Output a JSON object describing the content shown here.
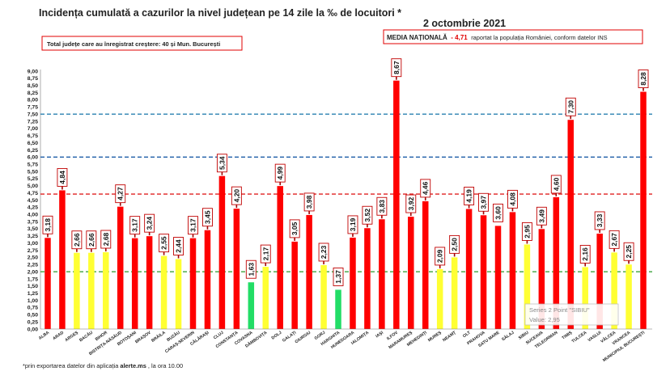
{
  "header": {
    "title": "Incidența cumulată a cazurilor la nivel județean pe 14 zile la ‰ de locuitori *",
    "date": "2 octombrie 2021"
  },
  "info_box": {
    "text": "Total județe care au înregistrat creștere:  40 și Mun. București"
  },
  "media_box": {
    "label": "MEDIA NAȚIONALĂ",
    "separator": " - ",
    "value": "4,71",
    "suffix": " raportat la populația României, conform datelor INS"
  },
  "tooltip": {
    "line1": "Series 2 Point \"SIBIU\"",
    "line2": "Value: 2,95"
  },
  "footnote": {
    "text": "*prin exportarea datelor din aplicația ",
    "bold": "alerte.ms",
    "end": ", la ora 10.00"
  },
  "colors": {
    "red": "#ff0000",
    "yellow": "#ffff33",
    "green": "#22dd66",
    "label_border": "#c00000",
    "arrow": "#a00000",
    "line_blue": "#1f5fa8",
    "line_lightblue": "#2a80b0",
    "line_red": "#e02020",
    "line_green": "#2a9a2a"
  },
  "chart_data": {
    "type": "bar",
    "title": "Incidența cumulată a cazurilor la nivel județean pe 14 zile la ‰ de locuitori *",
    "ylim": [
      0,
      9
    ],
    "ytick_step": 0.25,
    "grid": false,
    "categories": [
      "ALBA",
      "ARAD",
      "ARGEȘ",
      "BACĂU",
      "BIHOR",
      "BISTRIȚA-NĂSĂUD",
      "BOTOȘANI",
      "BRAȘOV",
      "BRĂILA",
      "BUZĂU",
      "CARAȘ-SEVERIN",
      "CĂLĂRAȘI",
      "CLUJ",
      "CONSTANȚA",
      "COVASNA",
      "DÂMBOVIȚA",
      "DOLJ",
      "GALAȚI",
      "GIURGIU",
      "GORJ",
      "HARGHITA",
      "HUNEDOARA",
      "IALOMIȚA",
      "IAȘI",
      "ILFOV",
      "MARAMUREȘ",
      "MEHEDINȚI",
      "MUREȘ",
      "NEAMȚ",
      "OLT",
      "PRAHOVA",
      "SATU MARE",
      "SĂLAJ",
      "SIBIU",
      "SUCEAVA",
      "TELEORMAN",
      "TIMIȘ",
      "TULCEA",
      "VASLUI",
      "VÂLCEA",
      "VRANCEA",
      "MUNICIPIUL BUCUREȘTI"
    ],
    "values": [
      3.18,
      4.84,
      2.66,
      2.66,
      2.68,
      4.27,
      3.17,
      3.24,
      2.55,
      2.44,
      3.17,
      3.45,
      5.34,
      4.2,
      1.63,
      2.17,
      4.99,
      3.05,
      3.98,
      2.23,
      1.37,
      3.19,
      3.52,
      3.83,
      8.67,
      3.92,
      4.46,
      2.09,
      2.5,
      4.19,
      3.97,
      3.6,
      4.08,
      2.95,
      3.49,
      4.6,
      7.3,
      2.16,
      3.33,
      2.67,
      2.25,
      8.28
    ],
    "labels": [
      "3,18",
      "4,84",
      "2,66",
      "2,66",
      "2,68",
      "4,27",
      "3,17",
      "3,24",
      "2,55",
      "2,44",
      "3,17",
      "3,45",
      "5,34",
      "4,20",
      "1,63",
      "2,17",
      "4,99",
      "3,05",
      "3,98",
      "2,23",
      "1,37",
      "3,19",
      "3,52",
      "3,83",
      "8,67",
      "3,92",
      "4,46",
      "2,09",
      "2,50",
      "4,19",
      "3,97",
      "3,60",
      "4,08",
      "2,95",
      "3,49",
      "4,60",
      "7,30",
      "2,16",
      "3,33",
      "2,67",
      "2,25",
      "8,28"
    ],
    "colors": [
      "red",
      "red",
      "yellow",
      "yellow",
      "yellow",
      "red",
      "red",
      "red",
      "yellow",
      "yellow",
      "red",
      "red",
      "red",
      "red",
      "green",
      "yellow",
      "red",
      "red",
      "red",
      "yellow",
      "green",
      "red",
      "red",
      "red",
      "red",
      "red",
      "red",
      "yellow",
      "yellow",
      "red",
      "red",
      "red",
      "red",
      "yellow",
      "red",
      "red",
      "red",
      "yellow",
      "red",
      "yellow",
      "yellow",
      "red"
    ],
    "arrows": [
      true,
      true,
      true,
      true,
      true,
      true,
      true,
      true,
      true,
      true,
      true,
      true,
      true,
      true,
      false,
      true,
      true,
      true,
      true,
      true,
      false,
      true,
      true,
      true,
      true,
      true,
      true,
      true,
      true,
      true,
      true,
      false,
      true,
      true,
      true,
      true,
      true,
      true,
      true,
      true,
      true,
      true
    ],
    "reference_lines": [
      {
        "value": 7.5,
        "color": "line_lightblue"
      },
      {
        "value": 6.0,
        "color": "line_blue"
      },
      {
        "value": 4.71,
        "color": "line_red"
      },
      {
        "value": 2.0,
        "color": "line_green"
      }
    ]
  }
}
